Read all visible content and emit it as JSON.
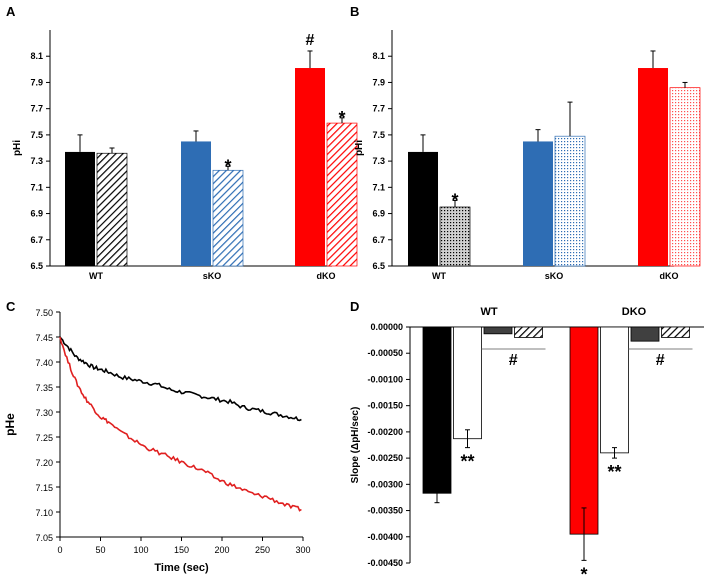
{
  "chart_data": [
    {
      "panel": "A",
      "type": "bar",
      "ylabel": "pHi",
      "xlabel": "",
      "ylim": [
        6.5,
        8.3
      ],
      "yticks": [
        "6.5",
        "6.7",
        "6.9",
        "7.1",
        "7.3",
        "7.5",
        "7.7",
        "7.9",
        "8.1"
      ],
      "categories": [
        "WT",
        "sKO",
        "dKO"
      ],
      "bars": [
        {
          "group": 0,
          "value": 7.37,
          "err": 0.13,
          "color": "#000000",
          "pattern": "solid",
          "annotation": ""
        },
        {
          "group": 0,
          "value": 7.36,
          "err": 0.04,
          "color": "#000000",
          "pattern": "hatch",
          "annotation": ""
        },
        {
          "group": 1,
          "value": 7.45,
          "err": 0.08,
          "color": "#2e6db4",
          "pattern": "solid",
          "annotation": ""
        },
        {
          "group": 1,
          "value": 7.23,
          "err": 0.03,
          "color": "#2e6db4",
          "pattern": "hatch",
          "annotation": "*"
        },
        {
          "group": 2,
          "value": 8.01,
          "err": 0.13,
          "color": "#ff0000",
          "pattern": "solid",
          "annotation": "#"
        },
        {
          "group": 2,
          "value": 7.59,
          "err": 0.04,
          "color": "#ff0000",
          "pattern": "hatch",
          "annotation": "*"
        }
      ]
    },
    {
      "panel": "B",
      "type": "bar",
      "ylabel": "pHi",
      "xlabel": "",
      "ylim": [
        6.5,
        8.3
      ],
      "yticks": [
        "6.5",
        "6.7",
        "6.9",
        "7.1",
        "7.3",
        "7.5",
        "7.7",
        "7.9",
        "8.1"
      ],
      "categories": [
        "WT",
        "sKO",
        "dKO"
      ],
      "bars": [
        {
          "group": 0,
          "value": 7.37,
          "err": 0.13,
          "color": "#000000",
          "pattern": "solid",
          "annotation": ""
        },
        {
          "group": 0,
          "value": 6.95,
          "err": 0.05,
          "color": "#000000",
          "pattern": "dots",
          "annotation": "*"
        },
        {
          "group": 1,
          "value": 7.45,
          "err": 0.09,
          "color": "#2e6db4",
          "pattern": "solid",
          "annotation": ""
        },
        {
          "group": 1,
          "value": 7.49,
          "err": 0.26,
          "color": "#2e6db4",
          "pattern": "dots",
          "annotation": ""
        },
        {
          "group": 2,
          "value": 8.01,
          "err": 0.13,
          "color": "#ff0000",
          "pattern": "solid",
          "annotation": ""
        },
        {
          "group": 2,
          "value": 7.86,
          "err": 0.04,
          "color": "#ff0000",
          "pattern": "dots",
          "annotation": ""
        }
      ]
    },
    {
      "panel": "C",
      "type": "line",
      "xlabel": "Time (sec)",
      "ylabel": "pHe",
      "xlim": [
        0,
        300
      ],
      "ylim": [
        7.05,
        7.5
      ],
      "xticks": [
        "0",
        "50",
        "100",
        "150",
        "200",
        "250",
        "300"
      ],
      "yticks": [
        "7.05",
        "7.10",
        "7.15",
        "7.20",
        "7.25",
        "7.30",
        "7.35",
        "7.40",
        "7.45",
        "7.50"
      ],
      "series": [
        {
          "color": "#000000",
          "x": [
            0,
            10,
            20,
            30,
            40,
            50,
            60,
            75,
            90,
            105,
            120,
            135,
            150,
            165,
            180,
            195,
            210,
            225,
            240,
            255,
            270,
            285,
            298
          ],
          "y": [
            7.45,
            7.43,
            7.41,
            7.4,
            7.39,
            7.385,
            7.38,
            7.37,
            7.365,
            7.36,
            7.355,
            7.345,
            7.34,
            7.335,
            7.33,
            7.325,
            7.32,
            7.31,
            7.305,
            7.3,
            7.295,
            7.29,
            7.285
          ]
        },
        {
          "color": "#e02020",
          "x": [
            0,
            10,
            20,
            30,
            40,
            50,
            60,
            75,
            90,
            105,
            120,
            135,
            150,
            165,
            180,
            195,
            210,
            225,
            240,
            255,
            270,
            285,
            298
          ],
          "y": [
            7.45,
            7.4,
            7.36,
            7.33,
            7.31,
            7.29,
            7.28,
            7.26,
            7.245,
            7.23,
            7.22,
            7.21,
            7.2,
            7.19,
            7.18,
            7.165,
            7.155,
            7.145,
            7.135,
            7.13,
            7.12,
            7.11,
            7.105
          ]
        }
      ]
    },
    {
      "panel": "D",
      "type": "bar",
      "ylabel": "Slope (ΔpH/sec)",
      "xlabel": "",
      "ylim": [
        -0.0045,
        0
      ],
      "yticks": [
        "0.00000",
        "-0.00050",
        "-0.00100",
        "-0.00150",
        "-0.00200",
        "-0.00250",
        "-0.00300",
        "-0.00350",
        "-0.00400",
        "-0.00450"
      ],
      "categories": [
        "WT",
        "DKO"
      ],
      "bars": [
        {
          "group": 0,
          "value": -0.00317,
          "err": 0.00018,
          "color": "#000000",
          "pattern": "solid",
          "annotation": ""
        },
        {
          "group": 0,
          "value": -0.00213,
          "err": 0.00017,
          "color": "#ffffff",
          "pattern": "solid",
          "annotation": "**"
        },
        {
          "group": 0,
          "value": -0.00013,
          "err": 0.0,
          "color": "#404040",
          "pattern": "solid",
          "annotation": ""
        },
        {
          "group": 0,
          "value": -0.0002,
          "err": 0.0,
          "color": "#ffffff",
          "pattern": "hatch",
          "annotation": ""
        },
        {
          "group": 1,
          "value": -0.00395,
          "err": 0.0005,
          "color": "#ff0000",
          "pattern": "solid",
          "annotation": "*"
        },
        {
          "group": 1,
          "value": -0.0024,
          "err": 0.0001,
          "color": "#ffffff",
          "pattern": "solid",
          "annotation": "**"
        },
        {
          "group": 1,
          "value": -0.00027,
          "err": 0.0,
          "color": "#404040",
          "pattern": "solid",
          "annotation": ""
        },
        {
          "group": 1,
          "value": -0.0002,
          "err": 0.0,
          "color": "#ffffff",
          "pattern": "hatch",
          "annotation": ""
        }
      ],
      "group_annotation": "#"
    }
  ],
  "panels": {
    "a": "A",
    "b": "B",
    "c": "C",
    "d": "D"
  }
}
